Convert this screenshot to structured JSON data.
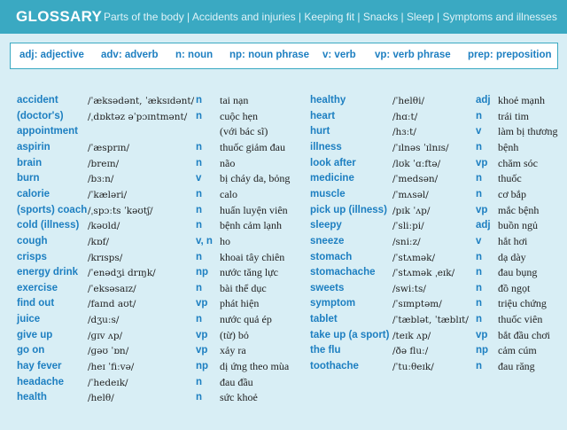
{
  "header": {
    "title": "GLOSSARY",
    "topics": "Parts of the body | Accidents and injuries | Keeping fit | Snacks | Sleep | Symptoms and illnesses"
  },
  "abbreviations": [
    "adj: adjective",
    "adv: adverb",
    "n: noun",
    "np: noun phrase",
    "v: verb",
    "vp: verb phrase",
    "prep: preposition"
  ],
  "columns": [
    [
      {
        "word": "accident",
        "ipa": "/ˈæksədənt, ˈæksɪdənt/",
        "pos": "n",
        "meaning": "tai nạn"
      },
      {
        "word": "(doctor's)",
        "ipa": "/ˌdɒktəz əˈpɔɪntmənt/",
        "pos": "n",
        "meaning": "cuộc hẹn"
      },
      {
        "word": "appointment",
        "meaning": "(với bác sĩ)"
      },
      {
        "word": "aspirin",
        "ipa": "/ˈæsprɪn/",
        "pos": "n",
        "meaning": "thuốc giảm đau"
      },
      {
        "word": "brain",
        "ipa": "/breɪn/",
        "pos": "n",
        "meaning": "não"
      },
      {
        "word": "burn",
        "ipa": "/bɜːn/",
        "pos": "v",
        "meaning": "bị cháy da, bỏng"
      },
      {
        "word": "calorie",
        "ipa": "/ˈkæləri/",
        "pos": "n",
        "meaning": "calo"
      },
      {
        "word": "(sports) coach",
        "ipa": "/ˌspɔːts ˈkəʊtʃ/",
        "pos": "n",
        "meaning": "huấn luyện viên"
      },
      {
        "word": "cold (illness)",
        "ipa": "/kəʊld/",
        "pos": "n",
        "meaning": "bệnh cảm lạnh"
      },
      {
        "word": "cough",
        "ipa": "/kɒf/",
        "pos": "v, n",
        "meaning": "ho"
      },
      {
        "word": "crisps",
        "ipa": "/krɪsps/",
        "pos": "n",
        "meaning": "khoai tây chiên"
      },
      {
        "word": "energy drink",
        "ipa": "/ˈenədʒi drɪŋk/",
        "pos": "np",
        "meaning": "nước tăng lực"
      },
      {
        "word": "exercise",
        "ipa": "/ˈeksəsaɪz/",
        "pos": "n",
        "meaning": "bài thể dục"
      },
      {
        "word": "find out",
        "ipa": "/faɪnd aʊt/",
        "pos": "vp",
        "meaning": "phát hiện"
      },
      {
        "word": "juice",
        "ipa": "/dʒuːs/",
        "pos": "n",
        "meaning": "nước quả ép"
      },
      {
        "word": "give up",
        "ipa": "/ɡɪv ʌp/",
        "pos": "vp",
        "meaning": "(từ) bỏ"
      },
      {
        "word": "go on",
        "ipa": "/ɡəʊ ˈɒn/",
        "pos": "vp",
        "meaning": "xảy ra"
      },
      {
        "word": "hay fever",
        "ipa": "/heɪ ˈfiːvə/",
        "pos": "np",
        "meaning": "dị ứng theo mùa"
      },
      {
        "word": "headache",
        "ipa": "/ˈhedeɪk/",
        "pos": "n",
        "meaning": "đau đầu"
      },
      {
        "word": "health",
        "ipa": "/helθ/",
        "pos": "n",
        "meaning": "sức khoẻ"
      }
    ],
    [
      {
        "word": "healthy",
        "ipa": "/ˈhelθi/",
        "pos": "adj",
        "meaning": "khoẻ mạnh"
      },
      {
        "word": "heart",
        "ipa": "/hɑːt/",
        "pos": "n",
        "meaning": "trái tim"
      },
      {
        "word": "hurt",
        "ipa": "/hɜːt/",
        "pos": "v",
        "meaning": "làm bị thương"
      },
      {
        "word": "illness",
        "ipa": "/ˈɪlnəs ˈɪlnɪs/",
        "pos": "n",
        "meaning": "bệnh"
      },
      {
        "word": "look after",
        "ipa": "/lʊk ˈɑːftə/",
        "pos": "vp",
        "meaning": "chăm sóc"
      },
      {
        "word": "medicine",
        "ipa": "/ˈmedsən/",
        "pos": "n",
        "meaning": "thuốc"
      },
      {
        "word": "muscle",
        "ipa": "/ˈmʌsəl/",
        "pos": "n",
        "meaning": "cơ bắp"
      },
      {
        "word": "pick up (illness)",
        "ipa": "/pɪk ˈʌp/",
        "pos": "vp",
        "meaning": "mắc bệnh"
      },
      {
        "word": "sleepy",
        "ipa": "/ˈsliːpi/",
        "pos": "adj",
        "meaning": "buồn ngủ"
      },
      {
        "word": "sneeze",
        "ipa": "/sniːz/",
        "pos": "v",
        "meaning": "hắt hơi"
      },
      {
        "word": "stomach",
        "ipa": "/ˈstʌmək/",
        "pos": "n",
        "meaning": "dạ dày"
      },
      {
        "word": "stomachache",
        "ipa": "/ˈstʌmək ˌeɪk/",
        "pos": "n",
        "meaning": "đau bụng"
      },
      {
        "word": "sweets",
        "ipa": "/swiːts/",
        "pos": "n",
        "meaning": "đồ ngọt"
      },
      {
        "word": "symptom",
        "ipa": "/ˈsɪmptəm/",
        "pos": "n",
        "meaning": "triệu chứng"
      },
      {
        "word": "tablet",
        "ipa": "/ˈtæblət, ˈtæblɪt/",
        "pos": "n",
        "meaning": "thuốc viên"
      },
      {
        "word": "take up (a sport)",
        "ipa": "/teɪk ʌp/",
        "pos": "vp",
        "meaning": "bắt đầu chơi"
      },
      {
        "word": "the flu",
        "ipa": "/ðə fluː/",
        "pos": "np",
        "meaning": "cảm cúm"
      },
      {
        "word": "toothache",
        "ipa": "/ˈtuːθeɪk/",
        "pos": "n",
        "meaning": "đau răng"
      }
    ]
  ]
}
